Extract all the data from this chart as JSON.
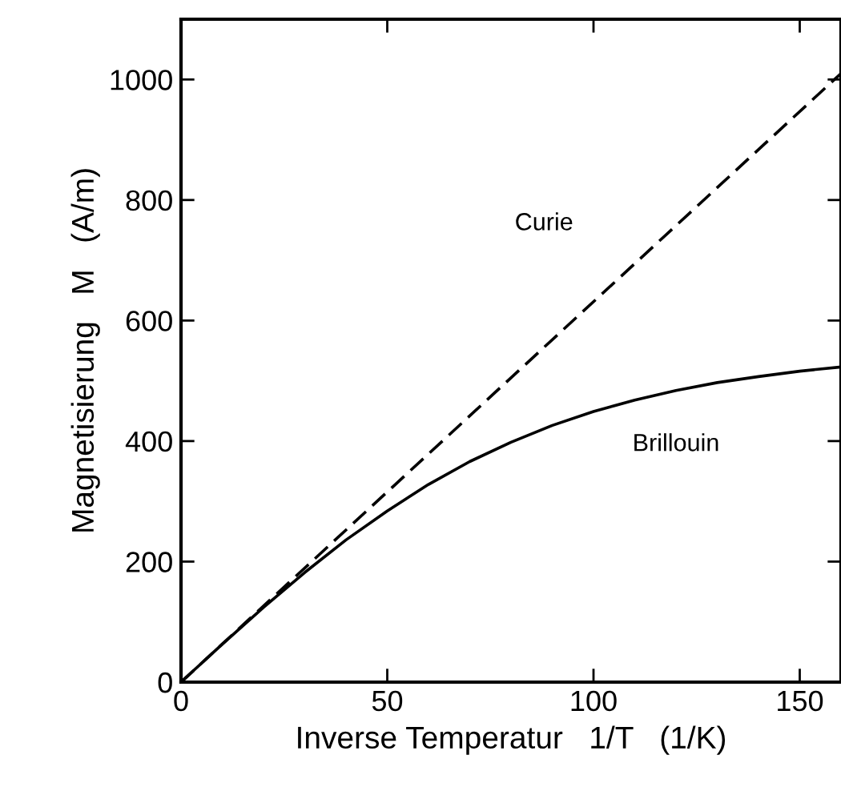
{
  "chart_data": {
    "type": "line",
    "xlabel": "Inverse Temperatur   1/T   (1/K)",
    "ylabel": "Magnetisierung   M   (A/m)",
    "x": [
      0,
      10,
      20,
      30,
      40,
      50,
      60,
      70,
      80,
      90,
      100,
      110,
      120,
      130,
      140,
      150,
      160
    ],
    "series": [
      {
        "name": "Curie",
        "color": "#000000",
        "line_style": "dashed",
        "x": [
          0,
          160
        ],
        "values": [
          0,
          1010
        ]
      },
      {
        "name": "Brillouin",
        "color": "#000000",
        "line_style": "solid",
        "values": [
          0,
          63,
          124,
          182,
          236,
          284,
          328,
          366,
          398,
          426,
          449,
          468,
          484,
          497,
          507,
          516,
          523
        ]
      }
    ],
    "xlim": [
      0,
      160
    ],
    "ylim": [
      0,
      1100
    ],
    "xticks": [
      0,
      50,
      100,
      150
    ],
    "yticks": [
      0,
      200,
      400,
      600,
      800,
      1000
    ],
    "grid": false,
    "legend": false,
    "marker": "none"
  }
}
